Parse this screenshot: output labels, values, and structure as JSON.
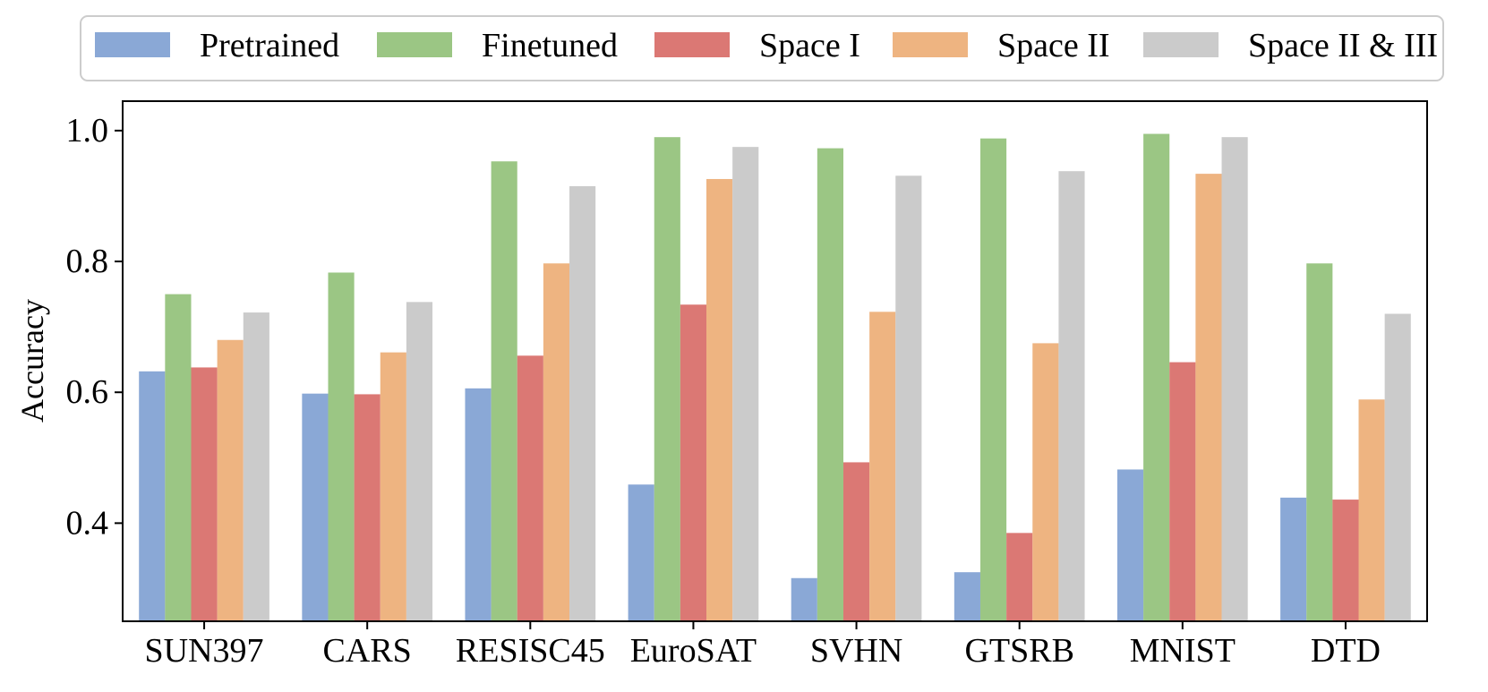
{
  "chart_data": {
    "type": "bar",
    "title": "",
    "xlabel": "",
    "ylabel": "Accuracy",
    "ylim": [
      0.25,
      1.045
    ],
    "yticks": [
      0.4,
      0.6,
      0.8,
      1.0
    ],
    "ytick_labels": [
      "0.4",
      "0.6",
      "0.8",
      "1.0"
    ],
    "grid": false,
    "legend_position": "top",
    "categories": [
      "SUN397",
      "CARS",
      "RESISC45",
      "EuroSAT",
      "SVHN",
      "GTSRB",
      "MNIST",
      "DTD"
    ],
    "series": [
      {
        "name": "Pretrained",
        "color": "#8aa8d6",
        "values": [
          0.632,
          0.598,
          0.606,
          0.459,
          0.316,
          0.325,
          0.482,
          0.439
        ]
      },
      {
        "name": "Finetuned",
        "color": "#9bc684",
        "values": [
          0.75,
          0.783,
          0.953,
          0.99,
          0.973,
          0.988,
          0.995,
          0.797
        ]
      },
      {
        "name": "Space I",
        "color": "#db7874",
        "values": [
          0.638,
          0.597,
          0.656,
          0.734,
          0.493,
          0.385,
          0.646,
          0.436
        ]
      },
      {
        "name": "Space II",
        "color": "#eeb481",
        "values": [
          0.68,
          0.661,
          0.797,
          0.926,
          0.723,
          0.675,
          0.934,
          0.589
        ]
      },
      {
        "name": "Space II & III",
        "color": "#cbcbcb",
        "values": [
          0.722,
          0.738,
          0.915,
          0.975,
          0.931,
          0.938,
          0.99,
          0.72
        ]
      }
    ]
  }
}
